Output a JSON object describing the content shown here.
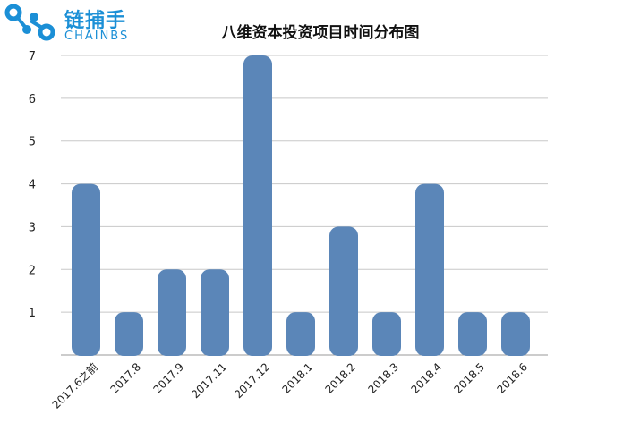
{
  "logo": {
    "cn": "链捕手",
    "en": "CHAINBS"
  },
  "colors": {
    "bar": "#5b86b8",
    "logo": "#1b8fd6",
    "grid": "#c8c8c8"
  },
  "chart_data": {
    "type": "bar",
    "title": "八维资本投资项目时间分布图",
    "categories": [
      "2017.6之前",
      "2017.8",
      "2017.9",
      "2017.11",
      "2017.12",
      "2018.1",
      "2018.2",
      "2018.3",
      "2018.4",
      "2018.5",
      "2018.6"
    ],
    "values": [
      4,
      1,
      2,
      2,
      7,
      1,
      3,
      1,
      4,
      1,
      1
    ],
    "ylim": [
      0,
      7
    ],
    "yticks": [
      1,
      2,
      3,
      4,
      5,
      6,
      7
    ],
    "grid": true,
    "xlabel": "",
    "ylabel": ""
  }
}
